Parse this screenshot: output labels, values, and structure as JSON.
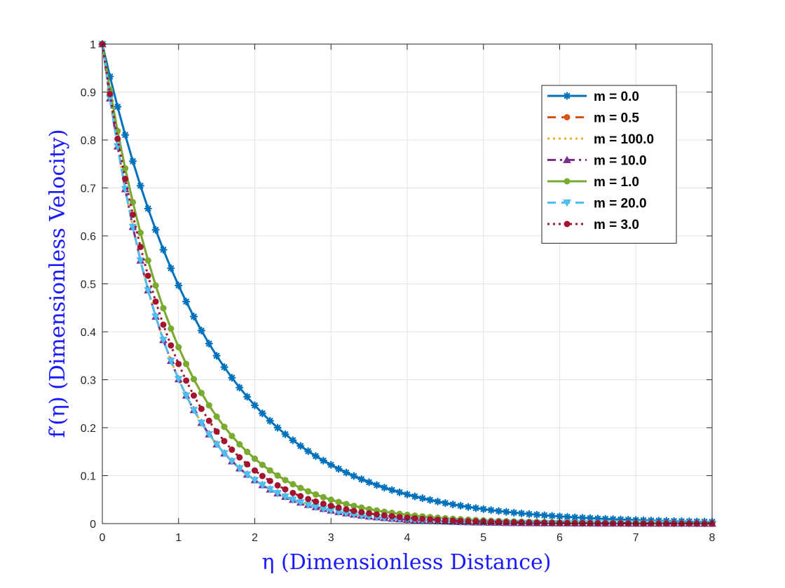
{
  "chart_data": {
    "type": "line",
    "title": "",
    "xlabel": "η (Dimensionless Distance)",
    "ylabel": "f′(η) (Dimensionless Velocity)",
    "xlim": [
      0,
      8
    ],
    "ylim": [
      0,
      1
    ],
    "xticks": [
      "0",
      "1",
      "2",
      "3",
      "4",
      "5",
      "6",
      "7",
      "8"
    ],
    "yticks": [
      "0",
      "0.1",
      "0.2",
      "0.3",
      "0.4",
      "0.5",
      "0.6",
      "0.7",
      "0.8",
      "0.9",
      "1"
    ],
    "grid": true,
    "legend_position": "top-right",
    "x_step": 0.1,
    "x_range": [
      0,
      8
    ],
    "series": [
      {
        "name": "m = 0.0",
        "decay_rate": 0.7,
        "initial_value": 1.0,
        "color": "#0072BD",
        "line_style": "solid",
        "marker": "asterisk"
      },
      {
        "name": "m = 0.5",
        "decay_rate": 1.0,
        "initial_value": 1.0,
        "color": "#D95319",
        "line_style": "dashed",
        "marker": "circle"
      },
      {
        "name": "m = 100.0",
        "decay_rate": 1.2,
        "initial_value": 1.0,
        "color": "#EDB120",
        "line_style": "dotted",
        "marker": "none"
      },
      {
        "name": "m = 10.0",
        "decay_rate": 1.2,
        "initial_value": 1.0,
        "color": "#7E2F8E",
        "line_style": "dashdot",
        "marker": "triangle-up"
      },
      {
        "name": "m = 1.0",
        "decay_rate": 1.0,
        "initial_value": 1.0,
        "color": "#77AC30",
        "line_style": "solid",
        "marker": "circle"
      },
      {
        "name": "m = 20.0",
        "decay_rate": 1.2,
        "initial_value": 1.0,
        "color": "#4DBEEE",
        "line_style": "dashed",
        "marker": "triangle-down"
      },
      {
        "name": "m = 3.0",
        "decay_rate": 1.1,
        "initial_value": 1.0,
        "color": "#A2142F",
        "line_style": "dotted",
        "marker": "circle"
      }
    ]
  }
}
